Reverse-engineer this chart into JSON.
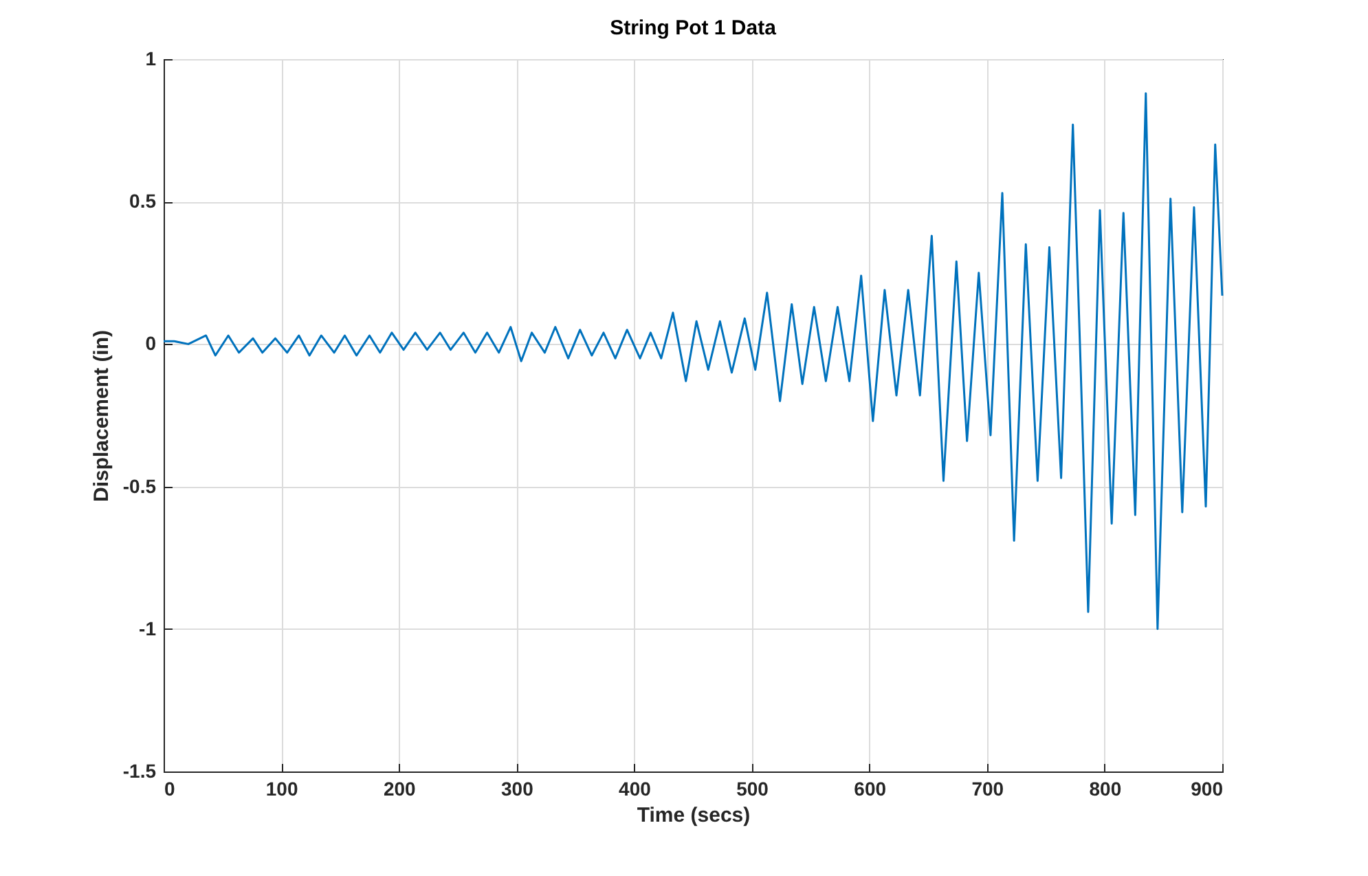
{
  "chart_data": {
    "type": "line",
    "title": "String Pot 1 Data",
    "xlabel": "Time (secs)",
    "ylabel": "Displacement (in)",
    "xlim": [
      0,
      900
    ],
    "xticks": [
      0,
      100,
      200,
      300,
      400,
      500,
      600,
      700,
      800,
      900
    ],
    "ylim": [
      -1.5,
      1
    ],
    "yticks": [
      -1.5,
      -1,
      -0.5,
      0,
      0.5,
      1
    ],
    "grid": true,
    "legend": false,
    "marker": "none",
    "line_style": "solid",
    "series": [
      {
        "color": "#0072bd",
        "x": [
          0,
          9,
          21,
          36,
          44,
          55,
          64,
          76,
          84,
          95,
          105,
          115,
          124,
          134,
          145,
          154,
          164,
          175,
          184,
          194,
          204,
          214,
          224,
          235,
          244,
          255,
          265,
          275,
          285,
          295,
          304,
          313,
          324,
          333,
          344,
          354,
          364,
          374,
          384,
          394,
          405,
          414,
          423,
          433,
          444,
          453,
          463,
          473,
          483,
          494,
          503,
          513,
          524,
          534,
          543,
          553,
          563,
          573,
          583,
          593,
          603,
          613,
          623,
          633,
          643,
          653,
          663,
          674,
          683,
          693,
          703,
          713,
          723,
          733,
          743,
          753,
          763,
          773,
          779,
          786,
          796,
          806,
          816,
          826,
          835,
          845,
          856,
          866,
          876,
          886,
          894,
          900
        ],
        "values": [
          0.01,
          0.01,
          0,
          0.03,
          -0.04,
          0.03,
          -0.03,
          0.02,
          -0.03,
          0.02,
          -0.03,
          0.03,
          -0.04,
          0.03,
          -0.03,
          0.03,
          -0.04,
          0.03,
          -0.03,
          0.04,
          -0.02,
          0.04,
          -0.02,
          0.04,
          -0.02,
          0.04,
          -0.03,
          0.04,
          -0.03,
          0.06,
          -0.06,
          0.04,
          -0.03,
          0.06,
          -0.05,
          0.05,
          -0.04,
          0.04,
          -0.05,
          0.05,
          -0.05,
          0.04,
          -0.05,
          0.11,
          -0.13,
          0.08,
          -0.09,
          0.08,
          -0.1,
          0.09,
          -0.09,
          0.18,
          -0.2,
          0.14,
          -0.14,
          0.13,
          -0.13,
          0.13,
          -0.13,
          0.24,
          -0.27,
          0.19,
          -0.18,
          0.19,
          -0.18,
          0.38,
          -0.48,
          0.29,
          -0.34,
          0.25,
          -0.32,
          0.53,
          -0.69,
          0.35,
          -0.48,
          0.34,
          -0.47,
          0.77,
          0,
          -0.94,
          0.47,
          -0.63,
          0.46,
          -0.6,
          0.88,
          -1.0,
          0.51,
          -0.59,
          0.48,
          -0.57,
          0.7,
          0.17
        ]
      }
    ]
  }
}
